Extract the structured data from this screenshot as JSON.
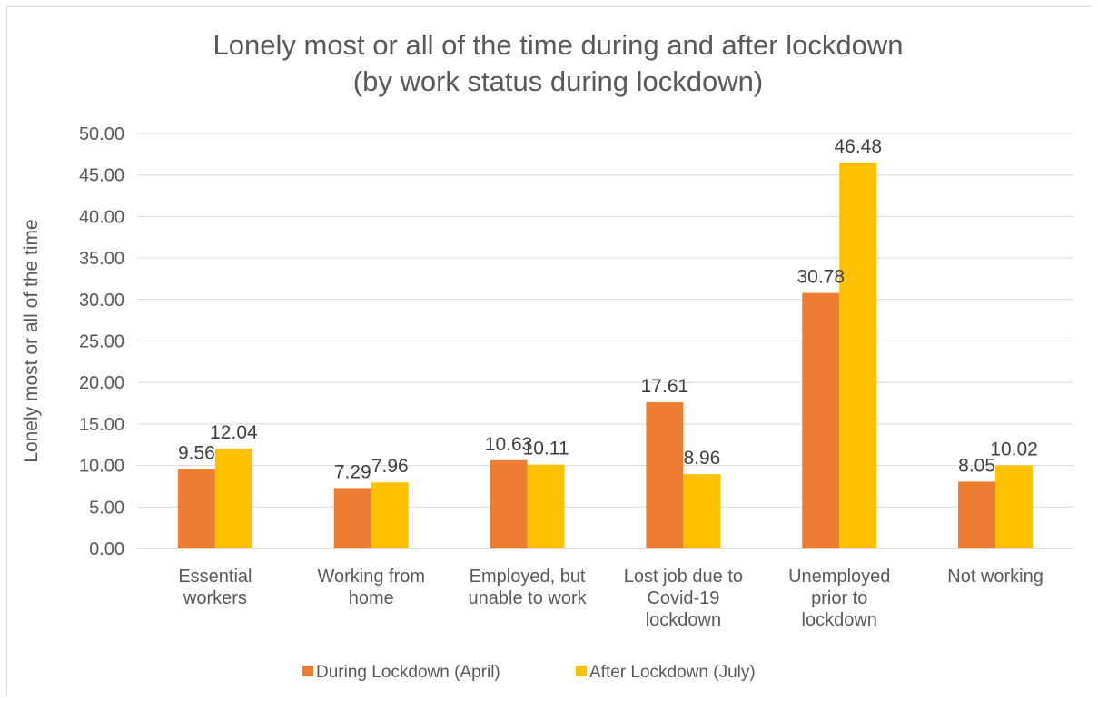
{
  "chart_data": {
    "type": "bar",
    "title": "Lonely most or all of the time during and after lockdown",
    "subtitle": "(by work status during lockdown)",
    "ylabel": "Lonely most or all of the time",
    "xlabel": "",
    "ylim": [
      0,
      50
    ],
    "ytick_step": 5,
    "ytick_labels": [
      "0.00",
      "5.00",
      "10.00",
      "15.00",
      "20.00",
      "25.00",
      "30.00",
      "35.00",
      "40.00",
      "45.00",
      "50.00"
    ],
    "grid": true,
    "legend_position": "bottom",
    "categories": [
      [
        "Essential",
        "workers"
      ],
      [
        "Working from",
        "home"
      ],
      [
        "Employed, but",
        "unable to work"
      ],
      [
        "Lost job due to",
        "Covid-19",
        "lockdown"
      ],
      [
        "Unemployed",
        "prior to",
        "lockdown"
      ],
      [
        "Not working"
      ]
    ],
    "series": [
      {
        "name": "During Lockdown (April)",
        "color": "#ed7d31",
        "values": [
          9.56,
          7.29,
          10.63,
          17.61,
          30.78,
          8.05
        ],
        "labels": [
          "9.56",
          "7.29",
          "10.63",
          "17.61",
          "30.78",
          "8.05"
        ]
      },
      {
        "name": "After Lockdown (July)",
        "color": "#ffc000",
        "values": [
          12.04,
          7.96,
          10.11,
          8.96,
          46.48,
          10.02
        ],
        "labels": [
          "12.04",
          "7.96",
          "10.11",
          "8.96",
          "46.48",
          "10.02"
        ]
      }
    ]
  }
}
